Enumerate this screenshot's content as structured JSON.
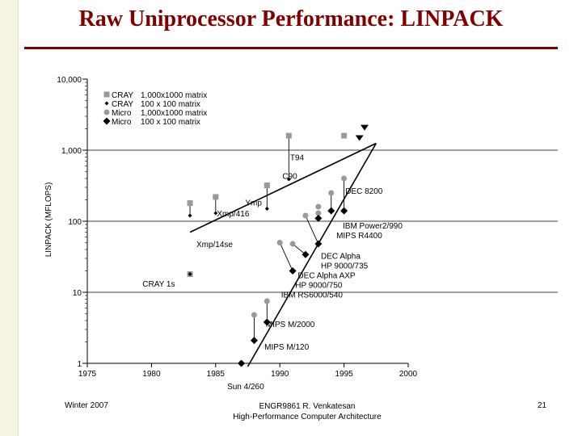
{
  "slide": {
    "title": "Raw Uniprocessor Performance: LINPACK",
    "footer_left": "Winter 2007",
    "footer_center_1": "ENGR9861  R. Venkatesan",
    "footer_center_2": "High-Performance Computer Architecture",
    "page_number": "21",
    "colors": {
      "title": "#800000",
      "rule": "#800000",
      "markers": "#999999",
      "lines": "#000000"
    }
  },
  "chart_data": {
    "type": "scatter",
    "ylabel": "LINPACK (MFLOPS)",
    "xlabel": "",
    "x_ticks": [
      "1975",
      "1980",
      "1985",
      "1990",
      "1995",
      "2000"
    ],
    "y_ticks": [
      "1",
      "10",
      "100",
      "1,000",
      "10,000"
    ],
    "xlim": [
      1975,
      2000
    ],
    "ylim": [
      1,
      10000
    ],
    "y_scale": "log",
    "legend": {
      "placement": "top-left",
      "entries": [
        {
          "name": "CRAY",
          "desc": "1,000x1000 matrix",
          "marker": "square"
        },
        {
          "name": "CRAY",
          "desc": "100 x 100 matrix",
          "marker": "small-diamond"
        },
        {
          "name": "Micro",
          "desc": "1,000x1000 matrix",
          "marker": "circle"
        },
        {
          "name": "Micro",
          "desc": "100 x 100 matrix",
          "marker": "diamond"
        }
      ]
    },
    "series": [
      {
        "name": "CRAY 1,000x1000 matrix",
        "marker": "square",
        "points": [
          {
            "x": 1983,
            "y": 18
          },
          {
            "x": 1983,
            "y": 180
          },
          {
            "x": 1985,
            "y": 220
          },
          {
            "x": 1989,
            "y": 320
          },
          {
            "x": 1990.7,
            "y": 1600
          },
          {
            "x": 1995,
            "y": 1600
          }
        ]
      },
      {
        "name": "CRAY 100 x 100 matrix",
        "marker": "small-diamond",
        "points": [
          {
            "x": 1983,
            "y": 18
          },
          {
            "x": 1983,
            "y": 120
          },
          {
            "x": 1985,
            "y": 130
          },
          {
            "x": 1989,
            "y": 150
          },
          {
            "x": 1990.7,
            "y": 390
          }
        ]
      },
      {
        "name": "Micro 1,000x1000 matrix",
        "marker": "circle",
        "points": [
          {
            "x": 1987,
            "y": 1
          },
          {
            "x": 1988,
            "y": 4.8
          },
          {
            "x": 1989,
            "y": 7.5
          },
          {
            "x": 1990,
            "y": 50
          },
          {
            "x": 1991,
            "y": 48
          },
          {
            "x": 1992,
            "y": 120
          },
          {
            "x": 1993,
            "y": 160
          },
          {
            "x": 1993,
            "y": 130
          },
          {
            "x": 1994,
            "y": 250
          },
          {
            "x": 1995,
            "y": 400
          }
        ]
      },
      {
        "name": "Micro 100 x 100 matrix",
        "marker": "diamond",
        "points": [
          {
            "x": 1987,
            "y": 1
          },
          {
            "x": 1988,
            "y": 2.1
          },
          {
            "x": 1989,
            "y": 3.8
          },
          {
            "x": 1991,
            "y": 20
          },
          {
            "x": 1992,
            "y": 34
          },
          {
            "x": 1993,
            "y": 48
          },
          {
            "x": 1993,
            "y": 110
          },
          {
            "x": 1994,
            "y": 140
          },
          {
            "x": 1995,
            "y": 140
          }
        ]
      },
      {
        "name": "Future",
        "marker": "triangle",
        "points": [
          {
            "x": 1996.6,
            "y": 2100
          },
          {
            "x": 1996.2,
            "y": 1500
          }
        ]
      }
    ],
    "trend_lines": [
      {
        "name": "CRAY trend",
        "from": {
          "x": 1983,
          "y": 70
        },
        "to": {
          "x": 1997.5,
          "y": 1250
        }
      },
      {
        "name": "Micro trend",
        "from": {
          "x": 1987.5,
          "y": 0.9
        },
        "to": {
          "x": 1997.5,
          "y": 1250
        }
      }
    ],
    "annotations": [
      {
        "text": "T94",
        "x": 1990.8,
        "y": 800
      },
      {
        "text": "C90",
        "x": 1990.2,
        "y": 440
      },
      {
        "text": "DEC 8200",
        "x": 1995.1,
        "y": 270
      },
      {
        "text": "Ymp",
        "x": 1987.3,
        "y": 185
      },
      {
        "text": "Xmp/416",
        "x": 1985.1,
        "y": 130
      },
      {
        "text": "IBM Power2/990",
        "x": 1994.9,
        "y": 88
      },
      {
        "text": "MIPS R4400",
        "x": 1994.4,
        "y": 64
      },
      {
        "text": "Xmp/14se",
        "x": 1983.5,
        "y": 48
      },
      {
        "text": "DEC Alpha",
        "x": 1993.2,
        "y": 33
      },
      {
        "text": "HP 9000/735",
        "x": 1993.2,
        "y": 24
      },
      {
        "text": "DEC Alpha AXP",
        "x": 1991.4,
        "y": 17.5
      },
      {
        "text": "HP 9000/750",
        "x": 1991.2,
        "y": 12.8
      },
      {
        "text": "IBM RS6000/540",
        "x": 1990.1,
        "y": 9.4
      },
      {
        "text": "CRAY 1s",
        "x": 1979.3,
        "y": 13.3
      },
      {
        "text": "MIPS M/2000",
        "x": 1988.9,
        "y": 3.6
      },
      {
        "text": "MIPS M/120",
        "x": 1988.8,
        "y": 1.73
      },
      {
        "text": "Sun 4/260",
        "x": 1985.9,
        "y": 0.48
      }
    ]
  }
}
